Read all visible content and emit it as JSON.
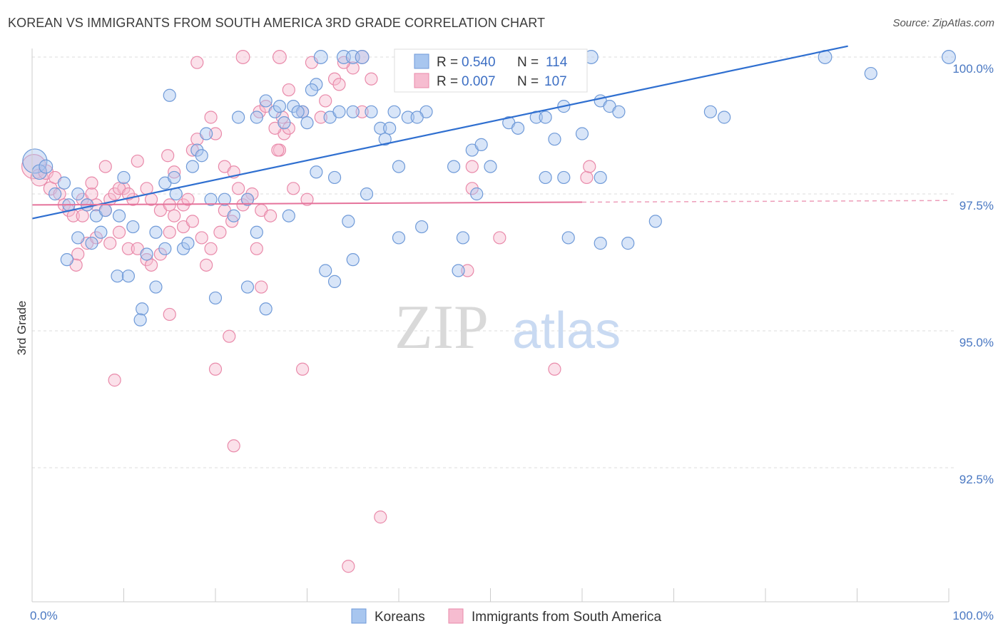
{
  "title": "KOREAN VS IMMIGRANTS FROM SOUTH AMERICA 3RD GRADE CORRELATION CHART",
  "source": "Source: ZipAtlas.com",
  "colors": {
    "korean_fill": "#a8c6ef",
    "korean_stroke": "#6f9ad8",
    "korean_line": "#2f6fd0",
    "sa_fill": "#f6bcd0",
    "sa_stroke": "#e98aaa",
    "sa_line": "#e5739b",
    "axis_label": "#4a78c2",
    "grid": "#dedede"
  },
  "legend": {
    "rows": [
      {
        "r_label": "R =",
        "r_value": "0.540",
        "n_label": "N =",
        "n_value": "114"
      },
      {
        "r_label": "R =",
        "r_value": "0.007",
        "n_label": "N =",
        "n_value": "107"
      }
    ]
  },
  "bottom_legend": [
    "Koreans",
    "Immigrants from South America"
  ],
  "watermark": {
    "zip": "ZIP",
    "atlas": "atlas"
  },
  "chart_data": {
    "type": "scatter",
    "title": "KOREAN VS IMMIGRANTS FROM SOUTH AMERICA 3RD GRADE CORRELATION CHART",
    "ylabel": "3rd Grade",
    "xlabel": "",
    "xlim": [
      0,
      100
    ],
    "ylim": [
      90.1,
      100.5
    ],
    "x_tick_labels": [
      "0.0%",
      "100.0%"
    ],
    "y_ticks": [
      {
        "value": 100.0,
        "label": "100.0%"
      },
      {
        "value": 97.5,
        "label": "97.5%"
      },
      {
        "value": 95.0,
        "label": "95.0%"
      },
      {
        "value": 92.5,
        "label": "92.5%"
      }
    ],
    "grid": true,
    "legend_position": "top-center",
    "series": [
      {
        "name": "Koreans",
        "r": 0.54,
        "n": 114,
        "trend": {
          "x": [
            0,
            89
          ],
          "y": [
            97.05,
            100.2
          ],
          "dashed_to": null
        },
        "points": [
          [
            0.3,
            98.1,
            20
          ],
          [
            0.8,
            97.9,
            12
          ],
          [
            1.5,
            98.0,
            11
          ],
          [
            2.5,
            97.5,
            10
          ],
          [
            3.5,
            97.7,
            10
          ],
          [
            4.0,
            97.3,
            10
          ],
          [
            5.0,
            97.5,
            10
          ],
          [
            6.0,
            97.3,
            10
          ],
          [
            7.0,
            97.1,
            10
          ],
          [
            8.0,
            97.2,
            10
          ],
          [
            9.5,
            97.1,
            10
          ],
          [
            10.0,
            97.8,
            10
          ],
          [
            5.0,
            96.7,
            10
          ],
          [
            6.5,
            96.6,
            10
          ],
          [
            7.5,
            96.8,
            10
          ],
          [
            11.0,
            96.9,
            10
          ],
          [
            12.5,
            96.4,
            10
          ],
          [
            13.5,
            96.8,
            10
          ],
          [
            3.8,
            96.3,
            10
          ],
          [
            9.3,
            96.0,
            10
          ],
          [
            10.5,
            96.0,
            10
          ],
          [
            13.5,
            95.8,
            10
          ],
          [
            12.0,
            95.4,
            10
          ],
          [
            11.8,
            95.2,
            10
          ],
          [
            14.5,
            97.7,
            10
          ],
          [
            15.5,
            97.8,
            10
          ],
          [
            17.5,
            98.0,
            10
          ],
          [
            18.0,
            98.3,
            10
          ],
          [
            18.5,
            98.2,
            10
          ],
          [
            19.0,
            98.6,
            10
          ],
          [
            15.7,
            97.5,
            10
          ],
          [
            19.5,
            97.4,
            10
          ],
          [
            21.0,
            97.4,
            10
          ],
          [
            22.0,
            97.1,
            10
          ],
          [
            23.5,
            97.4,
            10
          ],
          [
            24.5,
            96.8,
            10
          ],
          [
            20.0,
            95.6,
            10
          ],
          [
            23.5,
            95.8,
            10
          ],
          [
            25.5,
            95.4,
            10
          ],
          [
            16.5,
            96.5,
            10
          ],
          [
            14.5,
            96.5,
            10
          ],
          [
            17.0,
            96.6,
            10
          ],
          [
            15.0,
            99.3,
            10
          ],
          [
            22.5,
            98.9,
            10
          ],
          [
            24.5,
            98.9,
            10
          ],
          [
            25.5,
            99.2,
            10
          ],
          [
            26.5,
            99.0,
            10
          ],
          [
            27.0,
            99.1,
            10
          ],
          [
            28.5,
            99.1,
            10
          ],
          [
            29.5,
            99.0,
            10
          ],
          [
            30.0,
            98.8,
            10
          ],
          [
            31.0,
            99.5,
            10
          ],
          [
            32.5,
            98.9,
            10
          ],
          [
            33.5,
            99.0,
            10
          ],
          [
            27.5,
            98.8,
            10
          ],
          [
            29.0,
            99.0,
            10
          ],
          [
            30.5,
            99.4,
            10
          ],
          [
            31.0,
            97.9,
            10
          ],
          [
            33.0,
            97.8,
            10
          ],
          [
            35.0,
            99.0,
            10
          ],
          [
            37.0,
            99.0,
            10
          ],
          [
            38.0,
            98.7,
            10
          ],
          [
            38.5,
            98.5,
            10
          ],
          [
            39.0,
            98.7,
            10
          ],
          [
            39.5,
            99.0,
            10
          ],
          [
            40.0,
            98.0,
            10
          ],
          [
            41.0,
            98.9,
            10
          ],
          [
            43.0,
            99.0,
            10
          ],
          [
            42.0,
            98.9,
            10
          ],
          [
            36.5,
            97.5,
            10
          ],
          [
            28.0,
            97.1,
            10
          ],
          [
            34.5,
            97.0,
            10
          ],
          [
            40.0,
            96.7,
            10
          ],
          [
            35.0,
            96.3,
            10
          ],
          [
            32.0,
            96.1,
            10
          ],
          [
            33.0,
            95.9,
            10
          ],
          [
            46.0,
            98.0,
            10
          ],
          [
            48.0,
            98.3,
            10
          ],
          [
            49.0,
            98.4,
            10
          ],
          [
            50.0,
            98.0,
            10
          ],
          [
            52.0,
            98.8,
            10
          ],
          [
            53.0,
            98.7,
            10
          ],
          [
            55.0,
            98.9,
            10
          ],
          [
            56.0,
            98.9,
            10
          ],
          [
            57.0,
            98.5,
            10
          ],
          [
            58.0,
            99.1,
            10
          ],
          [
            60.0,
            98.6,
            10
          ],
          [
            62.0,
            99.2,
            10
          ],
          [
            63.0,
            99.1,
            10
          ],
          [
            64.0,
            99.0,
            10
          ],
          [
            56.0,
            97.8,
            10
          ],
          [
            58.0,
            97.8,
            10
          ],
          [
            62.0,
            97.8,
            10
          ],
          [
            47.0,
            96.7,
            10
          ],
          [
            58.5,
            96.7,
            10
          ],
          [
            62.0,
            96.6,
            10
          ],
          [
            46.5,
            96.1,
            10
          ],
          [
            42.5,
            96.9,
            10
          ],
          [
            74.0,
            99.0,
            10
          ],
          [
            75.5,
            98.9,
            10
          ],
          [
            68.0,
            97.0,
            10
          ],
          [
            65.0,
            96.6,
            10
          ],
          [
            31.5,
            100.0,
            11
          ],
          [
            34.0,
            100.0,
            11
          ],
          [
            35.0,
            100.0,
            11
          ],
          [
            36.0,
            100.0,
            11
          ],
          [
            40.5,
            100.0,
            11
          ],
          [
            47.0,
            100.0,
            11
          ],
          [
            51.0,
            100.0,
            11
          ],
          [
            53.0,
            100.0,
            11
          ],
          [
            57.0,
            100.0,
            11
          ],
          [
            61.0,
            100.0,
            11
          ],
          [
            86.5,
            100.0,
            11
          ],
          [
            100.0,
            100.0,
            11
          ],
          [
            91.5,
            99.7,
            10
          ],
          [
            48.5,
            97.5,
            10
          ]
        ]
      },
      {
        "name": "Immigrants from South America",
        "r": 0.007,
        "n": 107,
        "trend": {
          "x": [
            0,
            60
          ],
          "y": [
            97.3,
            97.35
          ],
          "dashed_to": [
            100,
            97.38
          ]
        },
        "points": [
          [
            0.2,
            98.0,
            20
          ],
          [
            0.8,
            97.8,
            14
          ],
          [
            1.5,
            97.9,
            12
          ],
          [
            2.0,
            97.6,
            11
          ],
          [
            2.5,
            97.8,
            10
          ],
          [
            3.0,
            97.5,
            10
          ],
          [
            3.5,
            97.3,
            10
          ],
          [
            4.0,
            97.2,
            10
          ],
          [
            4.5,
            97.1,
            10
          ],
          [
            5.5,
            97.4,
            10
          ],
          [
            6.0,
            97.3,
            10
          ],
          [
            6.5,
            97.5,
            10
          ],
          [
            7.0,
            97.3,
            10
          ],
          [
            8.0,
            97.2,
            10
          ],
          [
            8.5,
            97.4,
            10
          ],
          [
            9.0,
            97.5,
            10
          ],
          [
            10.0,
            97.6,
            10
          ],
          [
            11.0,
            97.4,
            10
          ],
          [
            6.5,
            97.7,
            10
          ],
          [
            8.0,
            98.0,
            10
          ],
          [
            9.5,
            97.6,
            10
          ],
          [
            10.5,
            97.5,
            10
          ],
          [
            11.5,
            98.1,
            10
          ],
          [
            12.5,
            97.6,
            10
          ],
          [
            13.0,
            97.4,
            10
          ],
          [
            14.0,
            97.2,
            10
          ],
          [
            15.0,
            97.3,
            10
          ],
          [
            15.5,
            97.1,
            10
          ],
          [
            16.5,
            97.3,
            10
          ],
          [
            17.0,
            97.4,
            10
          ],
          [
            5.0,
            96.4,
            10
          ],
          [
            6.0,
            96.6,
            10
          ],
          [
            7.0,
            96.7,
            10
          ],
          [
            8.5,
            96.6,
            10
          ],
          [
            10.5,
            96.5,
            10
          ],
          [
            11.5,
            96.5,
            10
          ],
          [
            4.8,
            96.2,
            10
          ],
          [
            12.5,
            96.3,
            10
          ],
          [
            13.0,
            96.2,
            10
          ],
          [
            14.0,
            96.4,
            10
          ],
          [
            15.0,
            96.8,
            10
          ],
          [
            16.5,
            96.9,
            10
          ],
          [
            17.5,
            97.0,
            10
          ],
          [
            18.5,
            96.7,
            10
          ],
          [
            19.5,
            96.5,
            10
          ],
          [
            19.0,
            96.2,
            10
          ],
          [
            20.5,
            96.8,
            10
          ],
          [
            21.0,
            97.2,
            10
          ],
          [
            14.8,
            98.2,
            10
          ],
          [
            15.5,
            97.9,
            10
          ],
          [
            17.5,
            98.3,
            10
          ],
          [
            18.0,
            98.5,
            10
          ],
          [
            19.5,
            98.9,
            10
          ],
          [
            20.0,
            98.6,
            10
          ],
          [
            21.0,
            98.0,
            10
          ],
          [
            22.0,
            97.9,
            10
          ],
          [
            22.5,
            97.6,
            10
          ],
          [
            23.0,
            97.3,
            10
          ],
          [
            24.0,
            97.5,
            10
          ],
          [
            25.0,
            97.2,
            10
          ],
          [
            23.5,
            97.4,
            10
          ],
          [
            24.5,
            96.5,
            10
          ],
          [
            26.0,
            97.1,
            10
          ],
          [
            27.0,
            98.3,
            10
          ],
          [
            27.5,
            98.6,
            10
          ],
          [
            28.0,
            98.7,
            10
          ],
          [
            24.8,
            99.0,
            10
          ],
          [
            25.5,
            99.1,
            10
          ],
          [
            26.5,
            98.7,
            10
          ],
          [
            27.3,
            98.9,
            10
          ],
          [
            28.5,
            97.6,
            10
          ],
          [
            26.8,
            98.3,
            10
          ],
          [
            28.0,
            99.4,
            10
          ],
          [
            29.5,
            99.0,
            10
          ],
          [
            30.5,
            99.9,
            10
          ],
          [
            31.5,
            98.9,
            10
          ],
          [
            32.0,
            99.2,
            10
          ],
          [
            33.0,
            99.6,
            10
          ],
          [
            23.0,
            100.0,
            11
          ],
          [
            27.0,
            100.0,
            11
          ],
          [
            36.0,
            100.0,
            11
          ],
          [
            18.0,
            99.9,
            10
          ],
          [
            37.0,
            99.6,
            10
          ],
          [
            35.0,
            99.8,
            10
          ],
          [
            33.5,
            99.5,
            10
          ],
          [
            34.0,
            99.9,
            10
          ],
          [
            36.0,
            99.0,
            10
          ],
          [
            15.0,
            95.3,
            10
          ],
          [
            21.5,
            94.9,
            10
          ],
          [
            20.0,
            94.3,
            10
          ],
          [
            29.5,
            94.3,
            10
          ],
          [
            9.0,
            94.1,
            10
          ],
          [
            22.0,
            92.9,
            10
          ],
          [
            38.0,
            91.6,
            10
          ],
          [
            34.5,
            90.7,
            10
          ],
          [
            47.5,
            96.1,
            10
          ],
          [
            51.0,
            96.7,
            10
          ],
          [
            48.0,
            97.6,
            10
          ],
          [
            60.5,
            97.8,
            10
          ],
          [
            60.8,
            98.0,
            10
          ],
          [
            48.0,
            98.0,
            10
          ],
          [
            30.0,
            97.4,
            10
          ],
          [
            21.8,
            97.0,
            10
          ],
          [
            25.0,
            95.8,
            10
          ],
          [
            57.0,
            94.3,
            10
          ],
          [
            5.5,
            97.1,
            10
          ],
          [
            9.5,
            96.8,
            10
          ]
        ]
      }
    ]
  }
}
